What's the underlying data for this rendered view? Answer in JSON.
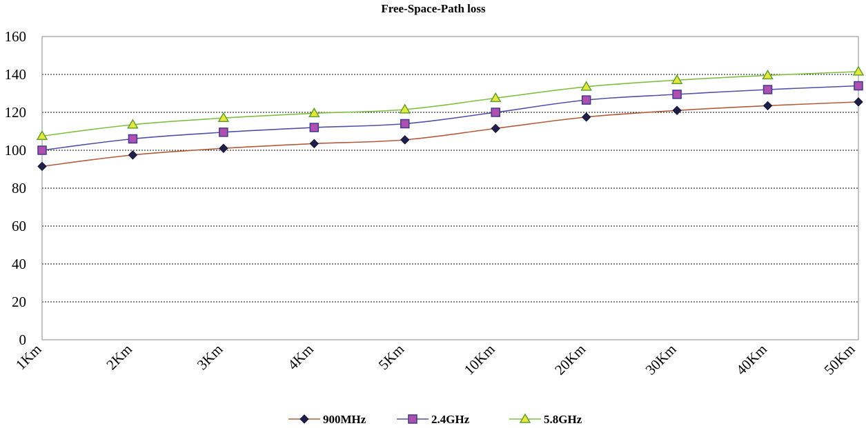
{
  "chart_data": {
    "type": "line",
    "title": "Free-Space-Path loss",
    "xlabel": "",
    "ylabel": "",
    "categories": [
      "1Km",
      "2Km",
      "3Km",
      "4Km",
      "5Km",
      "10Km",
      "20Km",
      "30Km",
      "40Km",
      "50Km"
    ],
    "ylim": [
      0,
      160
    ],
    "yticks": [
      0,
      20,
      40,
      60,
      80,
      100,
      120,
      140,
      160
    ],
    "grid": true,
    "legend_position": "bottom",
    "series": [
      {
        "name": "900MHz",
        "line_color": "#b35a3a",
        "marker": "diamond",
        "marker_color": "#1f1f4a",
        "values": [
          91.5,
          97.5,
          101,
          103.5,
          105.5,
          111.5,
          117.5,
          121,
          123.5,
          125.5
        ]
      },
      {
        "name": "2.4GHz",
        "line_color": "#4f4fa8",
        "marker": "square",
        "marker_color": "#b04fb0",
        "values": [
          100,
          106,
          109.5,
          112,
          114,
          120,
          126.5,
          129.5,
          132,
          134
        ]
      },
      {
        "name": "5.8GHz",
        "line_color": "#7fbf3f",
        "marker": "triangle",
        "marker_color": "#e8e83a",
        "values": [
          107.5,
          113.5,
          117,
          119.5,
          121.5,
          127.5,
          133.5,
          137,
          139.5,
          141.5
        ]
      }
    ]
  }
}
